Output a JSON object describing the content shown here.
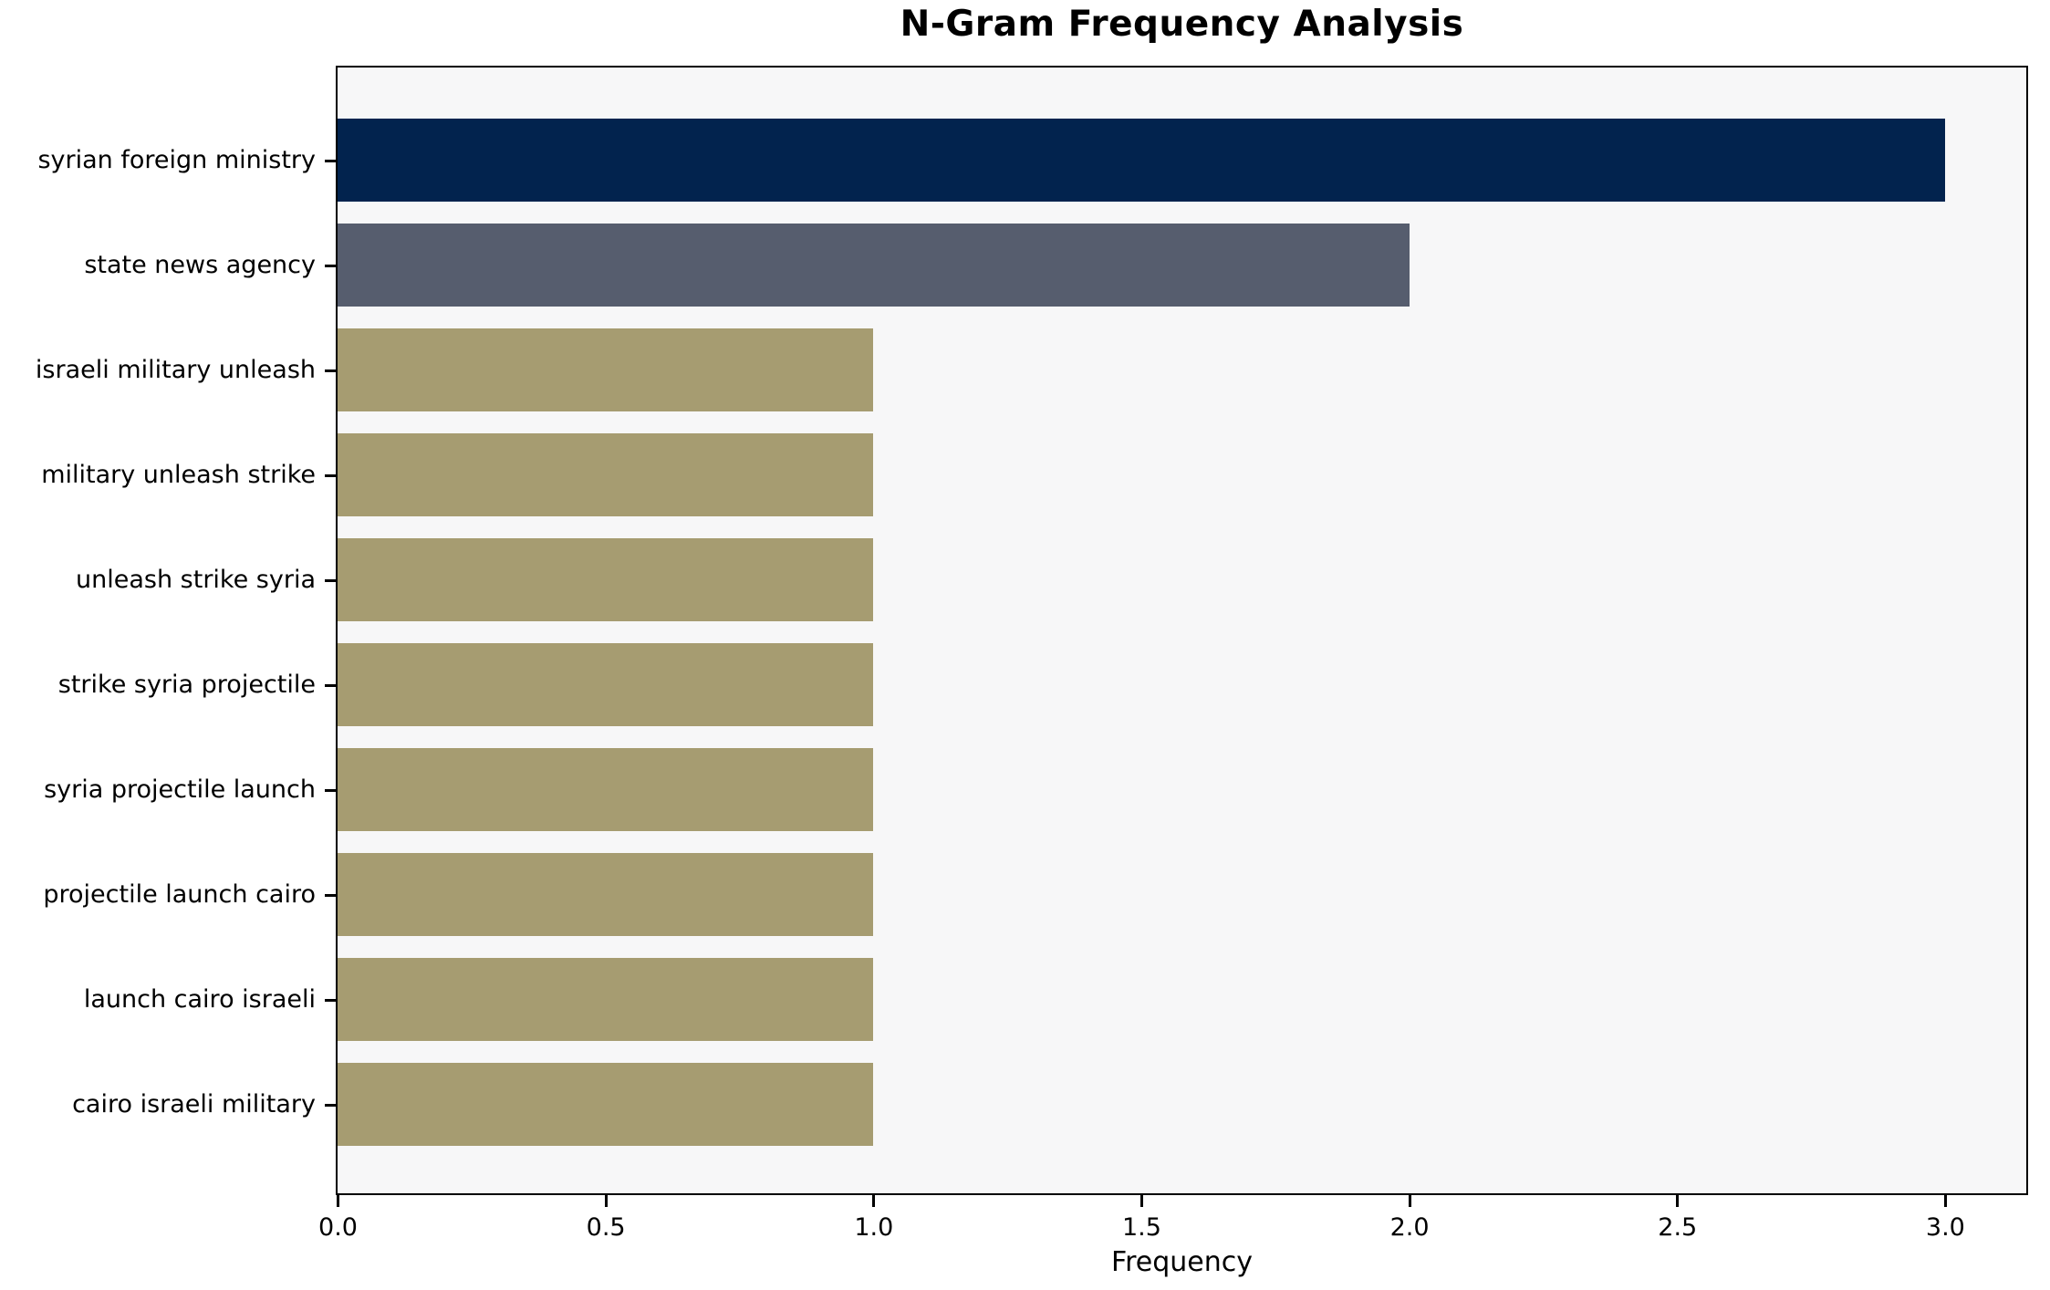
{
  "chart_data": {
    "type": "bar",
    "orientation": "horizontal",
    "title": "N-Gram Frequency Analysis",
    "xlabel": "Frequency",
    "ylabel": "",
    "categories": [
      "syrian foreign ministry",
      "state news agency",
      "israeli military unleash",
      "military unleash strike",
      "unleash strike syria",
      "strike syria projectile",
      "syria projectile launch",
      "projectile launch cairo",
      "launch cairo israeli",
      "cairo israeli military"
    ],
    "values": [
      3,
      2,
      1,
      1,
      1,
      1,
      1,
      1,
      1,
      1
    ],
    "bar_colors": [
      "#02234e",
      "#565d6e",
      "#a69c71",
      "#a69c71",
      "#a69c71",
      "#a69c71",
      "#a69c71",
      "#a69c71",
      "#a69c71",
      "#a69c71"
    ],
    "xlim": [
      0,
      3.15
    ],
    "xticks": [
      {
        "value": 0.0,
        "label": "0.0"
      },
      {
        "value": 0.5,
        "label": "0.5"
      },
      {
        "value": 1.0,
        "label": "1.0"
      },
      {
        "value": 1.5,
        "label": "1.5"
      },
      {
        "value": 2.0,
        "label": "2.0"
      },
      {
        "value": 2.5,
        "label": "2.5"
      },
      {
        "value": 3.0,
        "label": "3.0"
      }
    ],
    "grid": false,
    "legend": null,
    "plot_background": "#f7f7f8",
    "figure_background": "#ffffff",
    "spine_color": "#000000"
  }
}
